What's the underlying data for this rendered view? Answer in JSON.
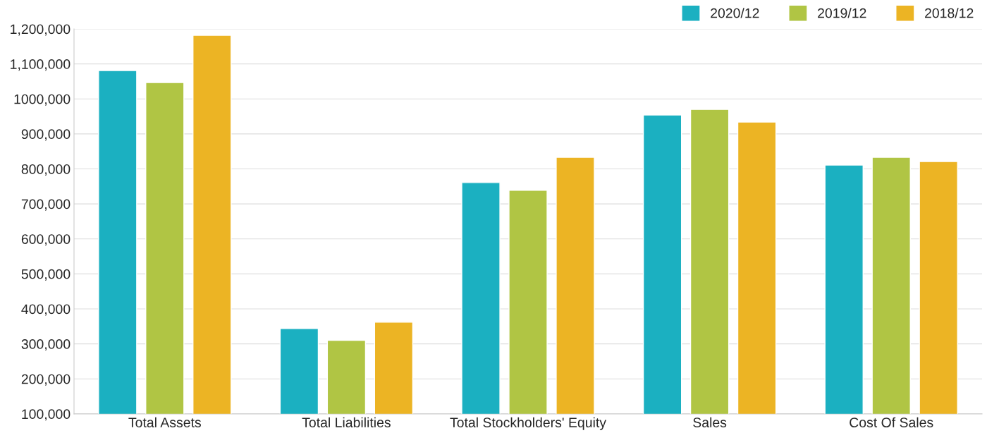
{
  "chart_data": {
    "type": "bar",
    "categories": [
      "Total Assets",
      "Total Liabilities",
      "Total Stockholders' Equity",
      "Sales",
      "Cost Of Sales"
    ],
    "series": [
      {
        "name": "2020/12",
        "color": "#1bb0c1",
        "values": [
          1081000,
          344000,
          761000,
          954000,
          811000
        ]
      },
      {
        "name": "2019/12",
        "color": "#b0c544",
        "values": [
          1047000,
          310000,
          739000,
          970000,
          833000
        ]
      },
      {
        "name": "2018/12",
        "color": "#ecb424",
        "values": [
          1182000,
          362000,
          833000,
          934000,
          821000
        ]
      }
    ],
    "ylim": [
      100000,
      1200000
    ],
    "yticks": [
      {
        "value": 100000,
        "label": "100,000"
      },
      {
        "value": 200000,
        "label": "200,000"
      },
      {
        "value": 300000,
        "label": "300,000"
      },
      {
        "value": 400000,
        "label": "400,000"
      },
      {
        "value": 500000,
        "label": "500,000"
      },
      {
        "value": 600000,
        "label": "600,000"
      },
      {
        "value": 700000,
        "label": "700,000"
      },
      {
        "value": 800000,
        "label": "800,000"
      },
      {
        "value": 900000,
        "label": "900,000"
      },
      {
        "value": 1000000,
        "label": "1000,000"
      },
      {
        "value": 1100000,
        "label": "1,100,000"
      },
      {
        "value": 1200000,
        "label": "1,200,000"
      }
    ],
    "grid": "y",
    "legend": "top right"
  }
}
